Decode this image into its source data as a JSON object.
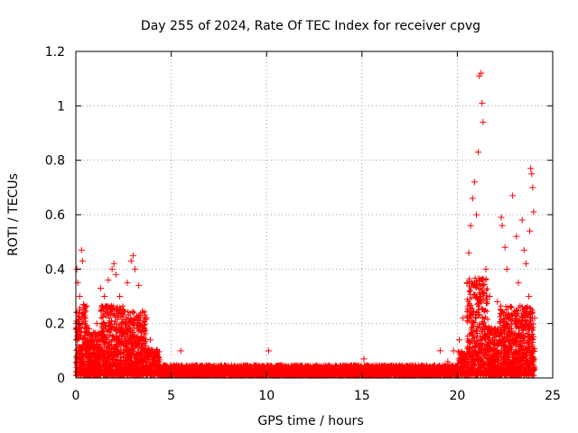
{
  "chart_data": {
    "type": "scatter",
    "title": "Day 255 of 2024, Rate Of TEC Index for receiver cpvg",
    "xlabel": "GPS time / hours",
    "ylabel": "ROTI / TECUs",
    "xlim": [
      0,
      25
    ],
    "ylim": [
      0,
      1.2
    ],
    "x_ticks": [
      0,
      5,
      10,
      15,
      20,
      25
    ],
    "x_tick_labels": [
      "0",
      "5",
      "10",
      "15",
      "20",
      "25"
    ],
    "y_ticks": [
      0,
      0.2,
      0.4,
      0.6,
      0.8,
      1.0,
      1.2
    ],
    "y_tick_labels": [
      "0",
      "0.2",
      "0.4",
      "0.6",
      "0.8",
      "1",
      "1.2"
    ],
    "grid": true,
    "marker": "+",
    "colors": {
      "series": "#ff0000",
      "axes": "#000000",
      "grid": "#a0a0a0"
    },
    "series": [
      {
        "name": "ROTI",
        "points": [
          [
            0.05,
            0.4
          ],
          [
            0.1,
            0.35
          ],
          [
            0.2,
            0.3
          ],
          [
            0.3,
            0.47
          ],
          [
            0.35,
            0.43
          ],
          [
            0.4,
            0.27
          ],
          [
            0.5,
            0.22
          ],
          [
            0.7,
            0.18
          ],
          [
            0.9,
            0.12
          ],
          [
            1.1,
            0.2
          ],
          [
            1.3,
            0.33
          ],
          [
            1.5,
            0.3
          ],
          [
            1.7,
            0.36
          ],
          [
            1.9,
            0.4
          ],
          [
            2.0,
            0.42
          ],
          [
            2.1,
            0.38
          ],
          [
            2.3,
            0.3
          ],
          [
            2.5,
            0.25
          ],
          [
            2.7,
            0.35
          ],
          [
            2.9,
            0.43
          ],
          [
            3.0,
            0.45
          ],
          [
            3.1,
            0.4
          ],
          [
            3.3,
            0.34
          ],
          [
            3.5,
            0.24
          ],
          [
            3.7,
            0.22
          ],
          [
            3.9,
            0.14
          ],
          [
            4.1,
            0.09
          ],
          [
            4.3,
            0.06
          ],
          [
            5.5,
            0.1
          ],
          [
            10.1,
            0.1
          ],
          [
            15.1,
            0.07
          ],
          [
            19.1,
            0.1
          ],
          [
            19.5,
            0.06
          ],
          [
            19.8,
            0.1
          ],
          [
            20.1,
            0.14
          ],
          [
            20.3,
            0.22
          ],
          [
            20.5,
            0.35
          ],
          [
            20.6,
            0.46
          ],
          [
            20.7,
            0.56
          ],
          [
            20.8,
            0.66
          ],
          [
            20.9,
            0.72
          ],
          [
            21.0,
            0.6
          ],
          [
            21.1,
            0.83
          ],
          [
            21.15,
            1.11
          ],
          [
            21.25,
            1.12
          ],
          [
            21.3,
            1.01
          ],
          [
            21.35,
            0.94
          ],
          [
            21.5,
            0.4
          ],
          [
            21.7,
            0.3
          ],
          [
            22.0,
            0.18
          ],
          [
            22.1,
            0.28
          ],
          [
            22.3,
            0.59
          ],
          [
            22.35,
            0.56
          ],
          [
            22.5,
            0.48
          ],
          [
            22.6,
            0.4
          ],
          [
            22.9,
            0.67
          ],
          [
            23.1,
            0.52
          ],
          [
            23.2,
            0.35
          ],
          [
            23.4,
            0.58
          ],
          [
            23.5,
            0.47
          ],
          [
            23.6,
            0.42
          ],
          [
            23.75,
            0.3
          ],
          [
            23.8,
            0.54
          ],
          [
            23.85,
            0.77
          ],
          [
            23.9,
            0.75
          ],
          [
            23.95,
            0.7
          ],
          [
            24.0,
            0.61
          ],
          [
            24.05,
            0.22
          ]
        ]
      }
    ]
  }
}
